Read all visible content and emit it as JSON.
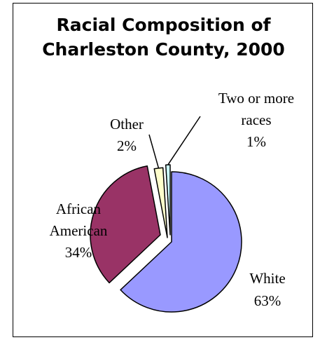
{
  "chart_data": {
    "type": "pie",
    "title": [
      "Racial Composition of",
      "Charleston County, 2000"
    ],
    "slices": [
      {
        "name": "White",
        "value": 63,
        "label": "63%",
        "color": "#9999ff"
      },
      {
        "name": "African American",
        "value": 34,
        "label": "34%",
        "color": "#993366"
      },
      {
        "name": "Other",
        "value": 2,
        "label": "2%",
        "color": "#ffffcc"
      },
      {
        "name": "Two or more races",
        "value": 1,
        "label": "1%",
        "color": "#ccffff"
      }
    ],
    "label_lines": {
      "White": [
        "White",
        "63%"
      ],
      "African American": [
        "African",
        "American",
        "34%"
      ],
      "Other": [
        "Other",
        "2%"
      ],
      "Two or more races": [
        "Two or more",
        "races",
        "1%"
      ]
    },
    "exploded": true,
    "legend": "none"
  }
}
